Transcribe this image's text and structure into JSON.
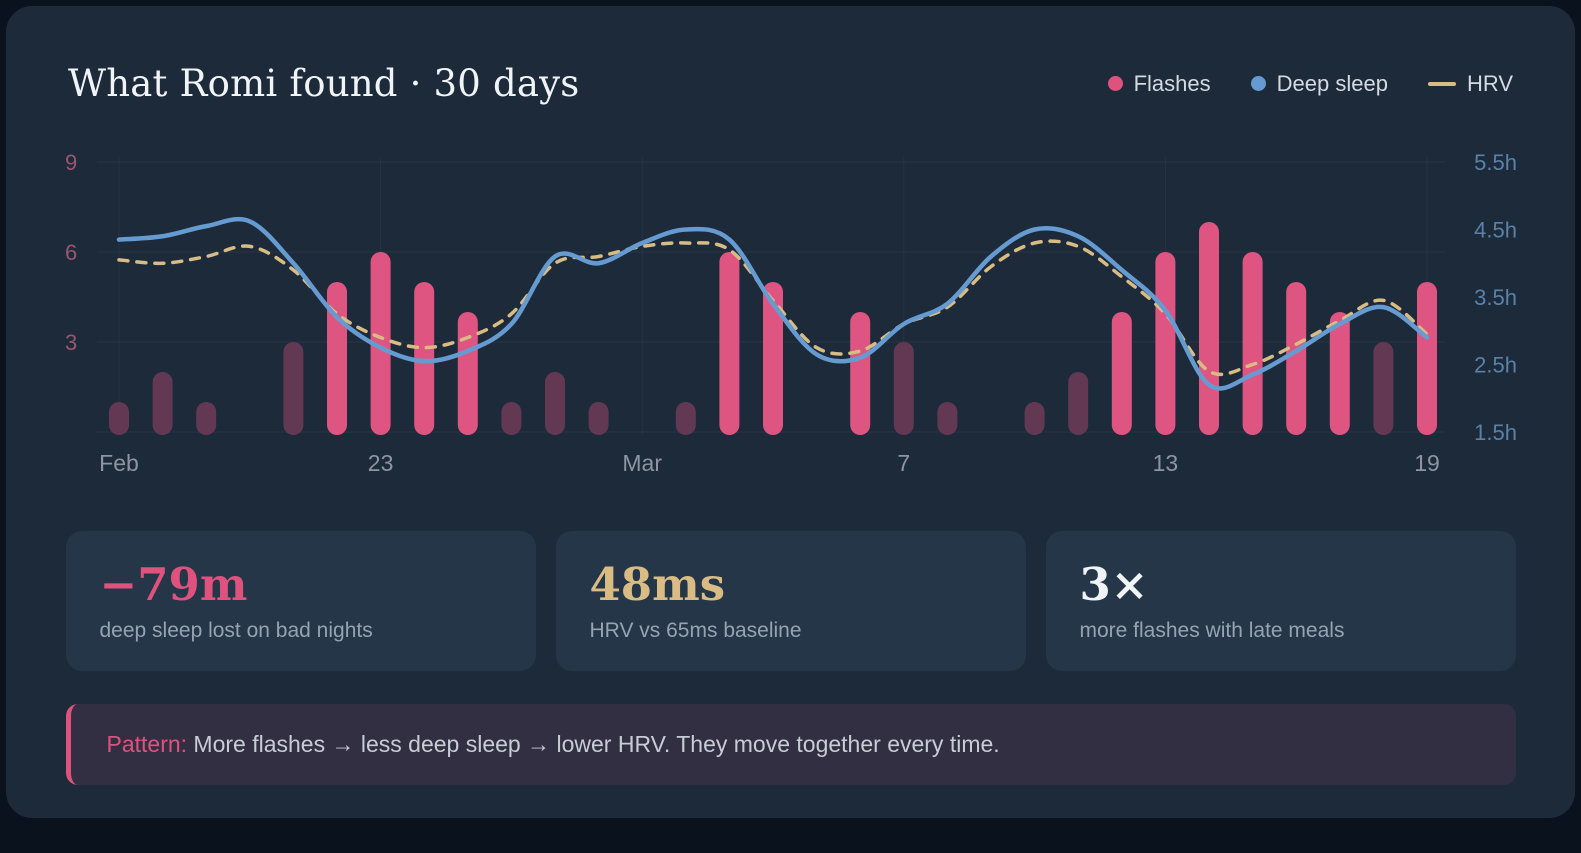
{
  "header": {
    "title": "What Romi found · 30 days"
  },
  "legend": {
    "items": [
      {
        "label": "Flashes",
        "color": "#e0527e",
        "marker": "dot"
      },
      {
        "label": "Deep sleep",
        "color": "#669bd2",
        "marker": "dot"
      },
      {
        "label": "HRV",
        "color": "#d8bc83",
        "marker": "line"
      }
    ]
  },
  "chart_data": {
    "type": "mixed-bar-line",
    "n_days": 31,
    "x_axis": {
      "tick_labels": [
        "Feb",
        "23",
        "Mar",
        "7",
        "13",
        "19"
      ],
      "tick_day_indices": [
        0,
        6,
        12,
        18,
        24,
        30
      ]
    },
    "left_axis": {
      "series": "Flashes",
      "ticks": [
        9,
        6,
        3
      ],
      "min": 0,
      "tick_color": "#9a5671"
    },
    "right_axis": {
      "series": "Deep sleep",
      "tick_labels": [
        "5.5h",
        "4.5h",
        "3.5h",
        "2.5h",
        "1.5h"
      ],
      "tick_values": [
        5.5,
        4.5,
        3.5,
        2.5,
        1.5
      ],
      "min": 1.5,
      "max": 5.5,
      "tick_color": "#5a81a8"
    },
    "grid": true,
    "series": [
      {
        "name": "Flashes",
        "type": "bar",
        "color": "#df5582",
        "muted_color": "#623853",
        "highlight_threshold": 4,
        "values": [
          1,
          2,
          1,
          0,
          3,
          5,
          6,
          5,
          4,
          1,
          2,
          1,
          0,
          1,
          6,
          5,
          0,
          4,
          3,
          1,
          0,
          1,
          2,
          4,
          6,
          7,
          6,
          5,
          4,
          3,
          5
        ]
      },
      {
        "name": "Deep sleep",
        "type": "line",
        "unit": "h",
        "color": "#669bd2",
        "values": [
          4.35,
          4.4,
          4.55,
          4.62,
          4.0,
          3.2,
          2.75,
          2.55,
          2.7,
          3.1,
          4.1,
          4.0,
          4.3,
          4.5,
          4.35,
          3.4,
          2.65,
          2.6,
          3.1,
          3.4,
          4.1,
          4.5,
          4.4,
          3.9,
          3.3,
          2.2,
          2.35,
          2.7,
          3.1,
          3.35,
          2.9
        ]
      },
      {
        "name": "HRV",
        "type": "dashed-line",
        "color": "#d8bc83",
        "plotted_on": "right_axis_scale",
        "values": [
          4.05,
          4.0,
          4.1,
          4.25,
          3.9,
          3.25,
          2.9,
          2.75,
          2.9,
          3.25,
          4.0,
          4.1,
          4.25,
          4.3,
          4.2,
          3.45,
          2.75,
          2.7,
          3.1,
          3.35,
          3.95,
          4.3,
          4.25,
          3.8,
          3.25,
          2.4,
          2.5,
          2.8,
          3.15,
          3.45,
          2.95
        ]
      }
    ]
  },
  "stats": [
    {
      "value": "−79m",
      "label": "deep sleep lost on bad nights",
      "color": "#e0527e"
    },
    {
      "value": "48ms",
      "label": "HRV vs 65ms baseline",
      "color": "#d8bc83"
    },
    {
      "value": "3×",
      "label": "more flashes with late meals",
      "color": "#f1f4f7"
    }
  ],
  "pattern": {
    "prefix": "Pattern:",
    "text": " More flashes → less deep sleep → lower HRV. They move together every time."
  }
}
